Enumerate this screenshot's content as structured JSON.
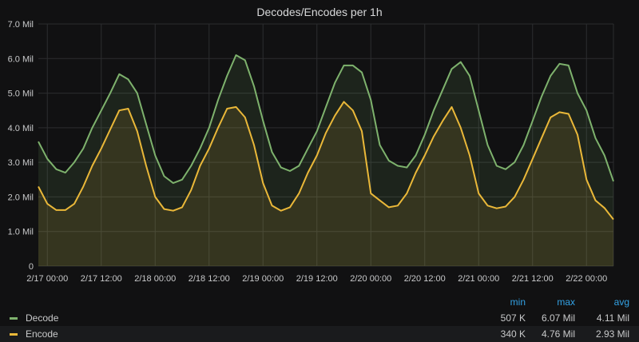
{
  "panel": {
    "title": "Decodes/Encodes per 1h"
  },
  "legend": {
    "headers": {
      "min": "min",
      "max": "max",
      "avg": "avg"
    },
    "rows": [
      {
        "name": "Decode",
        "color": "#7eb26d",
        "min": "507 K",
        "max": "6.07 Mil",
        "avg": "4.11 Mil"
      },
      {
        "name": "Encode",
        "color": "#eab839",
        "min": "340 K",
        "max": "4.76 Mil",
        "avg": "2.93 Mil"
      }
    ]
  },
  "chart_data": {
    "type": "area",
    "title": "Decodes/Encodes per 1h",
    "xlabel": "",
    "ylabel": "",
    "ylim": [
      0,
      7
    ],
    "y_unit": "Mil",
    "y_ticks": [
      "0",
      "1.0 Mil",
      "2.0 Mil",
      "3.0 Mil",
      "4.0 Mil",
      "5.0 Mil",
      "6.0 Mil",
      "7.0 Mil"
    ],
    "x_ticks": [
      "2/17 00:00",
      "2/17 12:00",
      "2/18 00:00",
      "2/18 12:00",
      "2/19 00:00",
      "2/19 12:00",
      "2/20 00:00",
      "2/20 12:00",
      "2/21 00:00",
      "2/21 12:00",
      "2/22 00:00"
    ],
    "x_start_tick": "2/16 22:00",
    "x_step_hours": 2,
    "grid": true,
    "series": [
      {
        "name": "Decode",
        "color": "#7eb26d",
        "values": [
          3.6,
          3.1,
          2.8,
          2.7,
          3.0,
          3.4,
          4.0,
          4.5,
          5.0,
          5.55,
          5.4,
          5.0,
          4.1,
          3.2,
          2.6,
          2.4,
          2.5,
          2.9,
          3.4,
          4.0,
          4.8,
          5.5,
          6.1,
          5.95,
          5.2,
          4.2,
          3.3,
          2.85,
          2.75,
          2.9,
          3.4,
          3.9,
          4.6,
          5.3,
          5.8,
          5.8,
          5.6,
          4.8,
          3.5,
          3.05,
          2.9,
          2.85,
          3.2,
          3.8,
          4.5,
          5.1,
          5.7,
          5.9,
          5.5,
          4.5,
          3.5,
          2.9,
          2.8,
          3.0,
          3.5,
          4.2,
          4.9,
          5.5,
          5.85,
          5.8,
          5.0,
          4.5,
          3.7,
          3.2,
          2.45
        ]
      },
      {
        "name": "Encode",
        "color": "#eab839",
        "values": [
          2.3,
          1.8,
          1.62,
          1.62,
          1.8,
          2.3,
          2.9,
          3.4,
          3.95,
          4.5,
          4.55,
          3.9,
          2.9,
          2.0,
          1.65,
          1.6,
          1.7,
          2.2,
          2.9,
          3.4,
          4.0,
          4.55,
          4.6,
          4.3,
          3.5,
          2.4,
          1.75,
          1.6,
          1.7,
          2.1,
          2.7,
          3.2,
          3.85,
          4.35,
          4.75,
          4.5,
          3.9,
          2.1,
          1.9,
          1.7,
          1.75,
          2.1,
          2.7,
          3.2,
          3.75,
          4.2,
          4.6,
          4.0,
          3.2,
          2.1,
          1.75,
          1.67,
          1.72,
          2.0,
          2.5,
          3.1,
          3.7,
          4.3,
          4.45,
          4.4,
          3.8,
          2.5,
          1.9,
          1.68,
          1.35
        ]
      }
    ]
  }
}
